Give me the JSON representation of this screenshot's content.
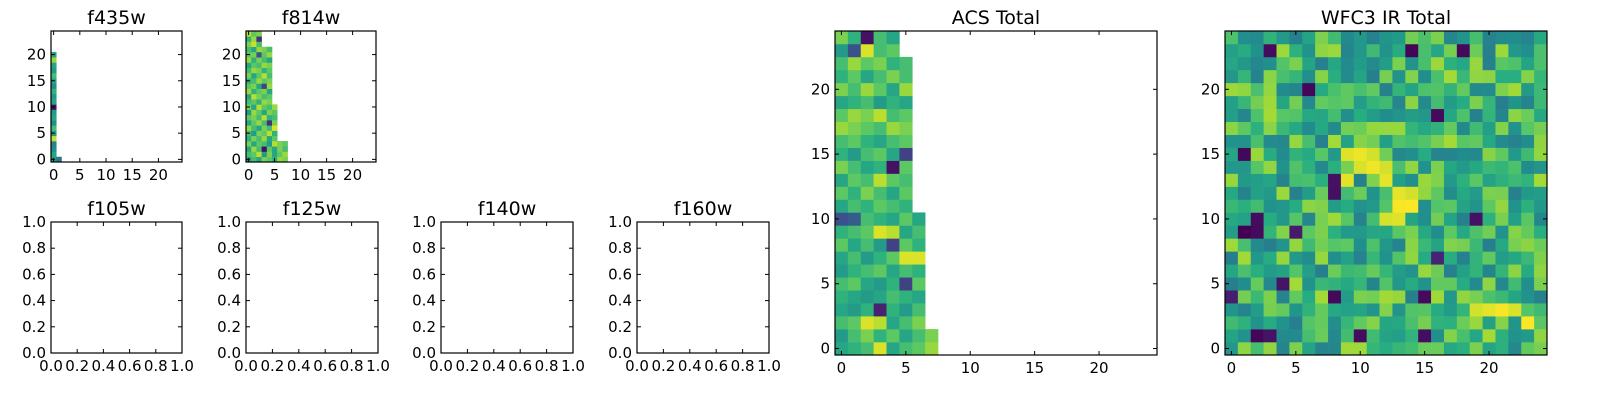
{
  "figure": {
    "background": "#ffffff",
    "colormap": "viridis",
    "panels": [
      {
        "id": "f435w",
        "title": "f435w"
      },
      {
        "id": "f814w",
        "title": "f814w"
      },
      {
        "id": "f105w",
        "title": "f105w"
      },
      {
        "id": "f125w",
        "title": "f125w"
      },
      {
        "id": "f140w",
        "title": "f140w"
      },
      {
        "id": "f160w",
        "title": "f160w"
      },
      {
        "id": "acs_total",
        "title": "ACS Total"
      },
      {
        "id": "wfc3_ir_total",
        "title": "WFC3 IR Total"
      }
    ]
  },
  "chart_data": [
    {
      "type": "heatmap",
      "title": "f435w",
      "xlim": [
        -0.5,
        24.5
      ],
      "ylim": [
        -0.5,
        24.5
      ],
      "xticks": [
        0,
        5,
        10,
        15,
        20
      ],
      "yticks": [
        0,
        5,
        10,
        15,
        20
      ],
      "grid": false,
      "note_values": "viridis-normalized values 0..1, rows indexed by y (0 at bottom); cells beyond each row's extent are empty",
      "row_extents": [
        2,
        1,
        1,
        1,
        1,
        1,
        1,
        1,
        1,
        1,
        1,
        1,
        1,
        1,
        1,
        1,
        1,
        1,
        1,
        1,
        1
      ],
      "rows": [
        [
          0.55,
          0.4
        ],
        [
          0.6
        ],
        [
          0.5
        ],
        [
          0.45
        ],
        [
          0.92
        ],
        [
          0.55
        ],
        [
          0.7
        ],
        [
          0.5
        ],
        [
          0.6
        ],
        [
          0.55
        ],
        [
          0.05
        ],
        [
          0.6
        ],
        [
          0.55
        ],
        [
          0.65
        ],
        [
          0.5
        ],
        [
          0.6
        ],
        [
          0.7
        ],
        [
          0.55
        ],
        [
          0.6
        ],
        [
          0.85
        ],
        [
          0.6
        ]
      ]
    },
    {
      "type": "heatmap",
      "title": "f814w",
      "xlim": [
        -0.5,
        24.5
      ],
      "ylim": [
        -0.5,
        24.5
      ],
      "xticks": [
        0,
        5,
        10,
        15,
        20
      ],
      "yticks": [
        0,
        5,
        10,
        15,
        20
      ],
      "grid": false,
      "row_extents": [
        8,
        8,
        8,
        8,
        6,
        6,
        6,
        6,
        6,
        6,
        6,
        5,
        5,
        5,
        5,
        5,
        5,
        5,
        5,
        5,
        5,
        5,
        3,
        3,
        3
      ],
      "rows": [
        [
          0.55,
          0.7,
          0.6,
          0.8,
          0.75,
          0.65,
          0.85,
          0.8
        ],
        [
          0.7,
          0.75,
          0.9,
          0.55,
          0.8,
          0.6,
          0.75,
          0.85
        ],
        [
          0.6,
          0.85,
          0.7,
          0.05,
          0.75,
          0.6,
          0.8,
          0.7
        ],
        [
          0.8,
          0.6,
          0.75,
          0.7,
          0.55,
          0.9,
          0.8,
          0.75
        ],
        [
          0.65,
          0.8,
          0.7,
          0.85,
          0.6,
          0.75
        ],
        [
          0.7,
          0.55,
          0.8,
          0.75,
          0.9,
          0.65
        ],
        [
          0.85,
          0.7,
          0.6,
          0.8,
          0.7,
          0.95
        ],
        [
          0.6,
          0.75,
          0.85,
          0.7,
          0.15,
          0.8
        ],
        [
          0.75,
          0.8,
          0.7,
          0.9,
          0.65,
          0.7
        ],
        [
          0.55,
          0.85,
          0.75,
          0.6,
          0.8,
          0.75
        ],
        [
          0.8,
          0.6,
          0.9,
          0.75,
          0.7,
          0.85
        ],
        [
          0.7,
          0.75,
          0.65,
          0.85,
          0.8
        ],
        [
          0.6,
          0.9,
          0.8,
          0.7,
          0.75
        ],
        [
          0.85,
          0.65,
          0.75,
          0.8,
          0.6
        ],
        [
          0.75,
          0.8,
          0.6,
          0.2,
          0.85
        ],
        [
          0.65,
          0.7,
          0.85,
          0.75,
          0.8
        ],
        [
          0.8,
          0.6,
          0.75,
          0.9,
          0.7
        ],
        [
          0.7,
          0.85,
          0.8,
          0.65,
          0.75
        ],
        [
          0.6,
          0.75,
          0.7,
          0.85,
          0.8
        ],
        [
          0.85,
          0.65,
          0.8,
          0.7,
          0.6
        ],
        [
          0.75,
          0.8,
          0.25,
          0.75,
          0.85
        ],
        [
          0.7,
          0.6,
          0.85,
          0.8,
          0.7
        ],
        [
          0.8,
          0.92,
          0.7
        ],
        [
          0.65,
          0.85,
          0.15
        ],
        [
          0.9,
          0.75,
          0.8
        ]
      ]
    },
    {
      "type": "table",
      "title": "f105w",
      "xlim": [
        0.0,
        1.0
      ],
      "ylim": [
        0.0,
        1.0
      ],
      "xticks": [
        "0.0",
        "0.2",
        "0.4",
        "0.6",
        "0.8",
        "1.0"
      ],
      "yticks": [
        "0.0",
        "0.2",
        "0.4",
        "0.6",
        "0.8",
        "1.0"
      ],
      "empty": true
    },
    {
      "type": "table",
      "title": "f125w",
      "xlim": [
        0.0,
        1.0
      ],
      "ylim": [
        0.0,
        1.0
      ],
      "xticks": [
        "0.0",
        "0.2",
        "0.4",
        "0.6",
        "0.8",
        "1.0"
      ],
      "yticks": [
        "0.0",
        "0.2",
        "0.4",
        "0.6",
        "0.8",
        "1.0"
      ],
      "empty": true
    },
    {
      "type": "table",
      "title": "f140w",
      "xlim": [
        0.0,
        1.0
      ],
      "ylim": [
        0.0,
        1.0
      ],
      "xticks": [
        "0.0",
        "0.2",
        "0.4",
        "0.6",
        "0.8",
        "1.0"
      ],
      "yticks": [
        "0.0",
        "0.2",
        "0.4",
        "0.6",
        "0.8",
        "1.0"
      ],
      "empty": true
    },
    {
      "type": "table",
      "title": "f160w",
      "xlim": [
        0.0,
        1.0
      ],
      "ylim": [
        0.0,
        1.0
      ],
      "xticks": [
        "0.0",
        "0.2",
        "0.4",
        "0.6",
        "0.8",
        "1.0"
      ],
      "yticks": [
        "0.0",
        "0.2",
        "0.4",
        "0.6",
        "0.8",
        "1.0"
      ],
      "empty": true
    },
    {
      "type": "heatmap",
      "title": "ACS Total",
      "xlim": [
        -0.5,
        24.5
      ],
      "ylim": [
        -0.5,
        24.5
      ],
      "xticks": [
        0,
        5,
        10,
        15,
        20
      ],
      "yticks": [
        0,
        5,
        10,
        15,
        20
      ],
      "grid": false,
      "row_extents": [
        8,
        8,
        7,
        7,
        7,
        7,
        7,
        7,
        7,
        7,
        7,
        6,
        6,
        6,
        6,
        6,
        6,
        6,
        6,
        6,
        6,
        6,
        6,
        5,
        5
      ],
      "rows": [
        [
          0.6,
          0.65,
          0.7,
          0.95,
          0.6,
          0.7,
          0.75,
          0.85
        ],
        [
          0.55,
          0.7,
          0.8,
          0.65,
          0.75,
          0.6,
          0.7,
          0.8
        ],
        [
          0.7,
          0.75,
          0.95,
          0.9,
          0.6,
          0.7,
          0.8
        ],
        [
          0.6,
          0.55,
          0.65,
          0.1,
          0.65,
          0.55,
          0.7
        ],
        [
          0.65,
          0.6,
          0.55,
          0.6,
          0.7,
          0.65,
          0.6
        ],
        [
          0.7,
          0.75,
          0.6,
          0.55,
          0.65,
          0.2,
          0.75
        ],
        [
          0.55,
          0.65,
          0.7,
          0.75,
          0.6,
          0.7,
          0.65
        ],
        [
          0.6,
          0.7,
          0.55,
          0.65,
          0.75,
          0.95,
          0.95
        ],
        [
          0.75,
          0.6,
          0.7,
          0.55,
          0.2,
          0.75,
          0.65
        ],
        [
          0.65,
          0.7,
          0.75,
          0.95,
          0.9,
          0.6,
          0.7
        ],
        [
          0.25,
          0.3,
          0.7,
          0.65,
          0.6,
          0.75,
          0.6
        ],
        [
          0.6,
          0.7,
          0.65,
          0.75,
          0.7,
          0.65
        ],
        [
          0.75,
          0.65,
          0.8,
          0.7,
          0.6,
          0.75
        ],
        [
          0.6,
          0.75,
          0.7,
          0.9,
          0.75,
          0.7
        ],
        [
          0.8,
          0.7,
          0.6,
          0.65,
          0.05,
          0.75
        ],
        [
          0.65,
          0.55,
          0.7,
          0.75,
          0.6,
          0.2
        ],
        [
          0.7,
          0.75,
          0.65,
          0.6,
          0.7,
          0.75
        ],
        [
          0.85,
          0.8,
          0.75,
          0.7,
          0.85,
          0.8
        ],
        [
          0.75,
          0.85,
          0.8,
          0.9,
          0.7,
          0.75
        ],
        [
          0.6,
          0.65,
          0.7,
          0.55,
          0.65,
          0.6
        ],
        [
          0.8,
          0.7,
          0.85,
          0.75,
          0.6,
          0.85
        ],
        [
          0.65,
          0.75,
          0.6,
          0.7,
          0.8,
          0.7
        ],
        [
          0.7,
          0.85,
          0.75,
          0.8,
          0.65,
          0.7
        ],
        [
          0.55,
          0.25,
          0.95,
          0.7,
          0.75
        ],
        [
          0.8,
          0.65,
          0.05,
          0.7,
          0.6
        ]
      ]
    },
    {
      "type": "heatmap",
      "title": "WFC3 IR Total",
      "xlim": [
        -0.5,
        24.5
      ],
      "ylim": [
        -0.5,
        24.5
      ],
      "xticks": [
        0,
        5,
        10,
        15,
        20
      ],
      "yticks": [
        0,
        5,
        10,
        15,
        20
      ],
      "grid": false,
      "seed": 7,
      "note_values": "full 25x25 viridis field; values 0..1; hot spots near x 9-15, y 11-16; dark cells listed",
      "base_mean": 0.65,
      "base_spread": 0.22,
      "hot_cells": [
        [
          9,
          15
        ],
        [
          10,
          15
        ],
        [
          11,
          15
        ],
        [
          10,
          14
        ],
        [
          11,
          14
        ],
        [
          12,
          14
        ],
        [
          9,
          13
        ],
        [
          12,
          13
        ],
        [
          13,
          12
        ],
        [
          14,
          12
        ],
        [
          13,
          11
        ],
        [
          14,
          11
        ],
        [
          12,
          10
        ],
        [
          13,
          10
        ],
        [
          19,
          3
        ],
        [
          20,
          3
        ],
        [
          21,
          3
        ],
        [
          22,
          3
        ],
        [
          23,
          2
        ]
      ],
      "dark_cells": [
        [
          2,
          10
        ],
        [
          2,
          9
        ],
        [
          1,
          9
        ],
        [
          0,
          4
        ],
        [
          3,
          1
        ],
        [
          2,
          1
        ],
        [
          8,
          13
        ],
        [
          8,
          12
        ],
        [
          8,
          4
        ],
        [
          10,
          1
        ],
        [
          15,
          1
        ],
        [
          15,
          4
        ],
        [
          19,
          10
        ],
        [
          18,
          23
        ],
        [
          16,
          18
        ],
        [
          6,
          20
        ],
        [
          14,
          23
        ],
        [
          3,
          23
        ],
        [
          1,
          15
        ],
        [
          5,
          9
        ],
        [
          16,
          7
        ],
        [
          4,
          5
        ]
      ]
    }
  ]
}
